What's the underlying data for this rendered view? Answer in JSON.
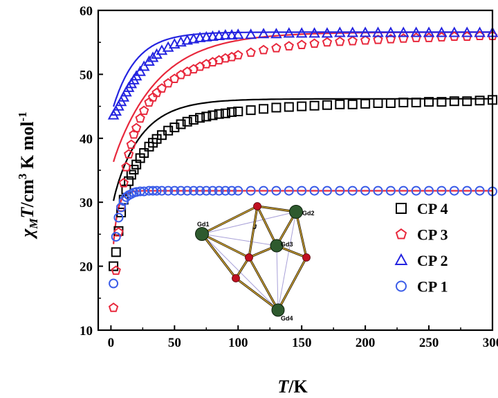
{
  "chart_data": {
    "type": "scatter",
    "title": "",
    "xlabel_italic": "T",
    "xlabel_rest": "/K",
    "ylabel_parts": {
      "chi": "χ",
      "sub": "M",
      "T": "T",
      "mid": "/cm",
      "sup3": "3",
      "tail": " K mol",
      "supm1": "-1"
    },
    "xlim": [
      -10,
      300
    ],
    "ylim": [
      10,
      60
    ],
    "xticks": [
      0,
      50,
      100,
      150,
      200,
      250,
      300
    ],
    "yticks": [
      10,
      20,
      30,
      40,
      50,
      60
    ],
    "grid": false,
    "legend_position": "right-middle",
    "series": [
      {
        "name": "CP 4",
        "marker": "square",
        "color": "#000000",
        "fit_color": "#000000",
        "model": {
          "plateau": 46.2,
          "a": 16.2,
          "b": 2.0,
          "c": 0.35,
          "d": 0.045,
          "start": 20.0
        },
        "x": [
          2,
          4,
          6,
          8,
          10,
          12,
          14,
          16,
          18,
          20,
          23,
          26,
          30,
          33,
          36,
          40,
          45,
          50,
          55,
          60,
          65,
          70,
          75,
          80,
          85,
          90,
          95,
          100,
          110,
          120,
          130,
          140,
          150,
          160,
          170,
          180,
          190,
          200,
          210,
          220,
          230,
          240,
          250,
          260,
          270,
          280,
          290,
          300
        ],
        "y": [
          20.0,
          22.2,
          25.5,
          28.4,
          30.4,
          32.0,
          33.3,
          34.3,
          35.1,
          35.9,
          36.9,
          37.7,
          38.7,
          39.3,
          39.9,
          40.5,
          41.2,
          41.7,
          42.2,
          42.6,
          42.9,
          43.2,
          43.4,
          43.6,
          43.8,
          43.9,
          44.1,
          44.2,
          44.4,
          44.6,
          44.8,
          44.9,
          45.0,
          45.1,
          45.2,
          45.3,
          45.3,
          45.4,
          45.5,
          45.5,
          45.6,
          45.6,
          45.7,
          45.7,
          45.8,
          45.8,
          45.9,
          46.0
        ]
      },
      {
        "name": "CP 3",
        "marker": "pentagon",
        "color": "#e8283c",
        "fit_color": "#e8283c",
        "model": {
          "plateau": 56.6,
          "a": 21.0,
          "b": 0.9,
          "c": 0.55,
          "d": 0.028,
          "start": 13.5
        },
        "x": [
          2,
          4,
          6,
          8,
          10,
          12,
          14,
          16,
          18,
          20,
          23,
          26,
          30,
          33,
          36,
          40,
          45,
          50,
          55,
          60,
          65,
          70,
          75,
          80,
          85,
          90,
          95,
          100,
          110,
          120,
          130,
          140,
          150,
          160,
          170,
          180,
          190,
          200,
          210,
          220,
          230,
          240,
          250,
          260,
          270,
          280,
          290,
          300
        ],
        "y": [
          13.5,
          19.3,
          25.3,
          29.2,
          33.0,
          35.5,
          37.5,
          39.0,
          40.6,
          41.6,
          43.1,
          44.3,
          45.6,
          46.4,
          47.1,
          47.8,
          48.6,
          49.3,
          49.9,
          50.4,
          50.8,
          51.2,
          51.6,
          51.9,
          52.2,
          52.5,
          52.7,
          53.0,
          53.4,
          53.8,
          54.1,
          54.4,
          54.6,
          54.8,
          55.0,
          55.1,
          55.2,
          55.3,
          55.4,
          55.5,
          55.6,
          55.7,
          55.7,
          55.8,
          55.9,
          55.9,
          56.0,
          56.0
        ]
      },
      {
        "name": "CP 2",
        "marker": "triangle",
        "color": "#2424e0",
        "fit_color": "#2424e0",
        "model": {
          "plateau": 56.6,
          "a": 13.0,
          "b": 0.0,
          "c": 0.0,
          "d": 0.055,
          "start": 43.6
        },
        "x": [
          2,
          4,
          6,
          8,
          10,
          12,
          14,
          16,
          18,
          20,
          23,
          26,
          30,
          33,
          36,
          40,
          45,
          50,
          55,
          60,
          65,
          70,
          75,
          80,
          85,
          90,
          95,
          100,
          110,
          120,
          130,
          140,
          150,
          160,
          170,
          180,
          190,
          200,
          210,
          220,
          230,
          240,
          250,
          260,
          270,
          280,
          290,
          300
        ],
        "y": [
          43.6,
          44.2,
          45.0,
          45.7,
          46.4,
          47.2,
          47.9,
          48.5,
          49.1,
          49.7,
          50.4,
          51.2,
          52.0,
          52.6,
          53.1,
          53.7,
          54.2,
          54.7,
          55.0,
          55.3,
          55.5,
          55.7,
          55.8,
          55.9,
          56.0,
          56.1,
          56.1,
          56.2,
          56.2,
          56.3,
          56.3,
          56.4,
          56.4,
          56.4,
          56.4,
          56.5,
          56.5,
          56.5,
          56.5,
          56.5,
          56.5,
          56.5,
          56.5,
          56.5,
          56.5,
          56.5,
          56.5,
          56.5
        ]
      },
      {
        "name": "CP 1",
        "marker": "circle",
        "color": "#3a5ce8",
        "fit_color": "#e8283c",
        "model": {
          "plateau": 31.8,
          "a": 14.6,
          "b": 0.0,
          "c": 0.0,
          "d": 0.28,
          "start": 17.3
        },
        "x": [
          2,
          4,
          6,
          8,
          10,
          12,
          14,
          16,
          18,
          20,
          23,
          26,
          30,
          33,
          36,
          40,
          45,
          50,
          55,
          60,
          65,
          70,
          75,
          80,
          85,
          90,
          95,
          100,
          110,
          120,
          130,
          140,
          150,
          160,
          170,
          180,
          190,
          200,
          210,
          220,
          230,
          240,
          250,
          260,
          270,
          280,
          290,
          300
        ],
        "y": [
          17.3,
          24.6,
          27.6,
          29.2,
          30.2,
          30.8,
          31.1,
          31.3,
          31.5,
          31.6,
          31.7,
          31.7,
          31.8,
          31.8,
          31.8,
          31.8,
          31.8,
          31.8,
          31.8,
          31.8,
          31.8,
          31.8,
          31.8,
          31.8,
          31.8,
          31.8,
          31.8,
          31.8,
          31.8,
          31.8,
          31.8,
          31.8,
          31.8,
          31.8,
          31.8,
          31.8,
          31.8,
          31.8,
          31.8,
          31.8,
          31.8,
          31.8,
          31.8,
          31.8,
          31.8,
          31.8,
          31.8,
          31.7
        ]
      }
    ],
    "inset": {
      "labels": [
        "Gd1",
        "Gd2",
        "Gd3",
        "Gd4",
        "J"
      ],
      "bond_color": "#b8952a",
      "gd_color": "#2e5a2e",
      "o_color": "#c01020",
      "coupling_color": "#a8a0d8"
    }
  }
}
